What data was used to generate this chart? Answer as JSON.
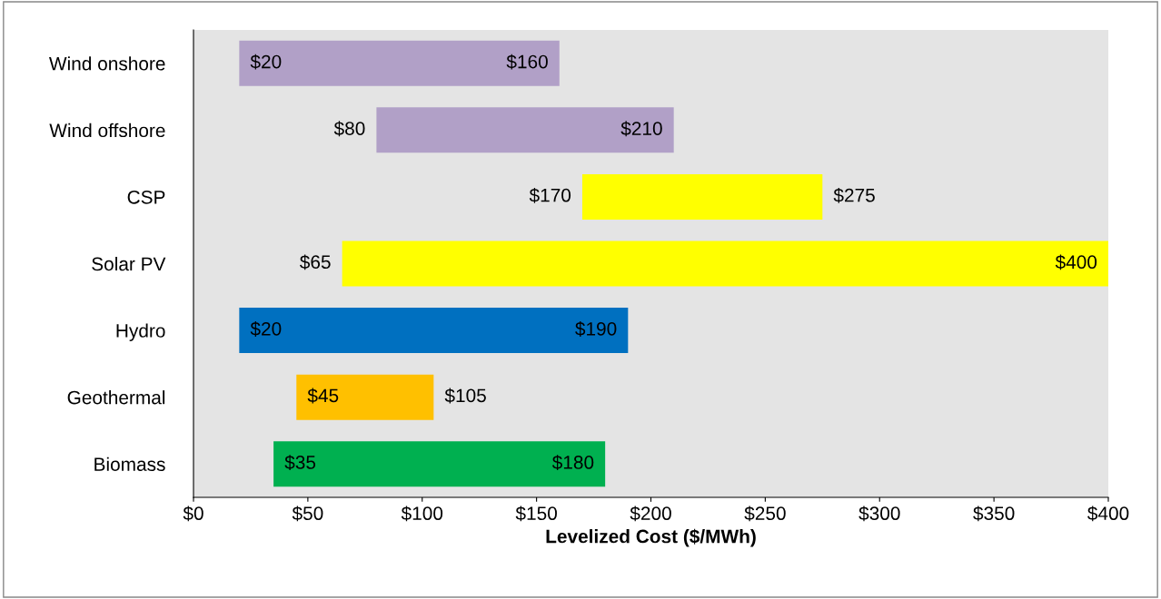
{
  "chart_data": {
    "type": "bar",
    "orientation": "horizontal",
    "xlabel": "Levelized Cost ($/MWh)",
    "categories": [
      "Wind onshore",
      "Wind offshore",
      "CSP",
      "Solar PV",
      "Hydro",
      "Geothermal",
      "Biomass"
    ],
    "base": [
      20,
      80,
      170,
      65,
      20,
      45,
      35
    ],
    "values": [
      140,
      130,
      105,
      335,
      170,
      60,
      145
    ],
    "colors": [
      "#b1a0c7",
      "#b1a0c7",
      "#ffff00",
      "#ffff00",
      "#0070c0",
      "#ffc000",
      "#00b050"
    ],
    "xlim": [
      0,
      400
    ],
    "xticks": [
      {
        "value": 0,
        "label": "$0"
      },
      {
        "value": 50,
        "label": "$50"
      },
      {
        "value": 100,
        "label": "$100"
      },
      {
        "value": 150,
        "label": "$150"
      },
      {
        "value": 200,
        "label": "$200"
      },
      {
        "value": 250,
        "label": "$250"
      },
      {
        "value": 300,
        "label": "$300"
      },
      {
        "value": 350,
        "label": "$350"
      },
      {
        "value": 400,
        "label": "$400"
      }
    ],
    "annotations": [
      {
        "text": "$20",
        "x": 20,
        "y": "Wind onshore"
      },
      {
        "text": "$160",
        "x": 160,
        "y": "Wind onshore"
      },
      {
        "text": "$80",
        "x": 80,
        "y": "Wind offshore"
      },
      {
        "text": "$210",
        "x": 210,
        "y": "Wind offshore"
      },
      {
        "text": "$170",
        "x": 170,
        "y": "CSP"
      },
      {
        "text": "$275",
        "x": 275,
        "y": "CSP"
      },
      {
        "text": "$65",
        "x": 65,
        "y": "Solar PV"
      },
      {
        "text": "$400",
        "x": 400,
        "y": "Solar PV"
      },
      {
        "text": "$20",
        "x": 20,
        "y": "Hydro"
      },
      {
        "text": "$190",
        "x": 190,
        "y": "Hydro"
      },
      {
        "text": "$45",
        "x": 45,
        "y": "Geothermal"
      },
      {
        "text": "$105",
        "x": 105,
        "y": "Geothermal"
      },
      {
        "text": "$35",
        "x": 35,
        "y": "Biomass"
      },
      {
        "text": "$180",
        "x": 180,
        "y": "Biomass"
      }
    ],
    "grid": false
  }
}
